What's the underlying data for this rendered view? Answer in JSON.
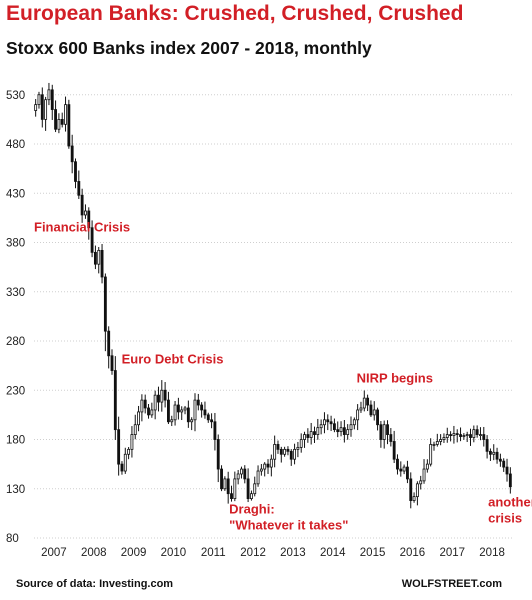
{
  "chart_data": {
    "type": "candlestick",
    "title": "European Banks: Crushed, Crushed, Crushed",
    "subtitle": "Stoxx 600 Banks index 2007 - 2018, monthly",
    "ylim": [
      80,
      545
    ],
    "yticks": [
      80,
      130,
      180,
      230,
      280,
      330,
      380,
      430,
      480,
      530
    ],
    "xlim": [
      2007.0,
      2019.0
    ],
    "xticks": [
      "2007",
      "2008",
      "2009",
      "2010",
      "2011",
      "2012",
      "2013",
      "2014",
      "2015",
      "2016",
      "2017",
      "2018"
    ],
    "grid": true,
    "y_axis_position": "left",
    "series": [
      {
        "months": [
          "2007-01",
          "2007-02",
          "2007-03",
          "2007-04",
          "2007-05",
          "2007-06",
          "2007-07",
          "2007-08",
          "2007-09",
          "2007-10",
          "2007-11",
          "2007-12",
          "2008-01",
          "2008-02",
          "2008-03",
          "2008-04",
          "2008-05",
          "2008-06",
          "2008-07",
          "2008-08",
          "2008-09",
          "2008-10",
          "2008-11",
          "2008-12",
          "2009-01",
          "2009-02",
          "2009-03",
          "2009-04",
          "2009-05",
          "2009-06",
          "2009-07",
          "2009-08",
          "2009-09",
          "2009-10",
          "2009-11",
          "2009-12",
          "2010-01",
          "2010-02",
          "2010-03",
          "2010-04",
          "2010-05",
          "2010-06",
          "2010-07",
          "2010-08",
          "2010-09",
          "2010-10",
          "2010-11",
          "2010-12",
          "2011-01",
          "2011-02",
          "2011-03",
          "2011-04",
          "2011-05",
          "2011-06",
          "2011-07",
          "2011-08",
          "2011-09",
          "2011-10",
          "2011-11",
          "2011-12",
          "2012-01",
          "2012-02",
          "2012-03",
          "2012-04",
          "2012-05",
          "2012-06",
          "2012-07",
          "2012-08",
          "2012-09",
          "2012-10",
          "2012-11",
          "2012-12",
          "2013-01",
          "2013-02",
          "2013-03",
          "2013-04",
          "2013-05",
          "2013-06",
          "2013-07",
          "2013-08",
          "2013-09",
          "2013-10",
          "2013-11",
          "2013-12",
          "2014-01",
          "2014-02",
          "2014-03",
          "2014-04",
          "2014-05",
          "2014-06",
          "2014-07",
          "2014-08",
          "2014-09",
          "2014-10",
          "2014-11",
          "2014-12",
          "2015-01",
          "2015-02",
          "2015-03",
          "2015-04",
          "2015-05",
          "2015-06",
          "2015-07",
          "2015-08",
          "2015-09",
          "2015-10",
          "2015-11",
          "2015-12",
          "2016-01",
          "2016-02",
          "2016-03",
          "2016-04",
          "2016-05",
          "2016-06",
          "2016-07",
          "2016-08",
          "2016-09",
          "2016-10",
          "2016-11",
          "2016-12",
          "2017-01",
          "2017-02",
          "2017-03",
          "2017-04",
          "2017-05",
          "2017-06",
          "2017-07",
          "2017-08",
          "2017-09",
          "2017-10",
          "2017-11",
          "2017-12",
          "2018-01",
          "2018-02",
          "2018-03",
          "2018-04",
          "2018-05",
          "2018-06",
          "2018-07",
          "2018-08",
          "2018-09",
          "2018-10",
          "2018-11",
          "2018-12"
        ],
        "close": [
          520,
          530,
          505,
          525,
          535,
          515,
          495,
          505,
          500,
          520,
          478,
          462,
          442,
          428,
          408,
          412,
          395,
          370,
          358,
          372,
          345,
          290,
          265,
          250,
          190,
          155,
          148,
          165,
          170,
          185,
          195,
          208,
          220,
          212,
          205,
          210,
          225,
          218,
          230,
          220,
          198,
          200,
          215,
          208,
          210,
          212,
          198,
          200,
          220,
          215,
          210,
          205,
          200,
          198,
          180,
          150,
          130,
          140,
          125,
          120,
          140,
          145,
          150,
          140,
          120,
          125,
          135,
          148,
          150,
          155,
          152,
          160,
          175,
          170,
          165,
          170,
          168,
          160,
          170,
          172,
          180,
          185,
          182,
          188,
          185,
          192,
          195,
          200,
          198,
          196,
          190,
          188,
          192,
          185,
          190,
          195,
          200,
          210,
          212,
          222,
          215,
          205,
          210,
          195,
          180,
          195,
          185,
          178,
          160,
          150,
          148,
          152,
          140,
          118,
          122,
          135,
          138,
          150,
          155,
          175,
          175,
          178,
          180,
          182,
          185,
          184,
          186,
          185,
          183,
          184,
          185,
          182,
          190,
          185,
          185,
          180,
          168,
          165,
          167,
          160,
          158,
          152,
          145,
          132
        ]
      }
    ],
    "annotations": [
      {
        "lines": [
          "Financial Crisis"
        ],
        "x": 2007.0,
        "y": 391
      },
      {
        "lines": [
          "Euro Debt Crisis"
        ],
        "x": 2009.2,
        "y": 257
      },
      {
        "lines": [
          "Draghi:",
          "\"Whatever it takes\""
        ],
        "x": 2011.9,
        "y": 105
      },
      {
        "lines": [
          "NIRP begins"
        ],
        "x": 2015.1,
        "y": 238
      },
      {
        "lines": [
          "another",
          "crisis"
        ],
        "x": 2018.4,
        "y": 112
      }
    ]
  },
  "footer": {
    "source": "Source of data: Investing.com",
    "brand": "WOLFSTREET.com"
  }
}
